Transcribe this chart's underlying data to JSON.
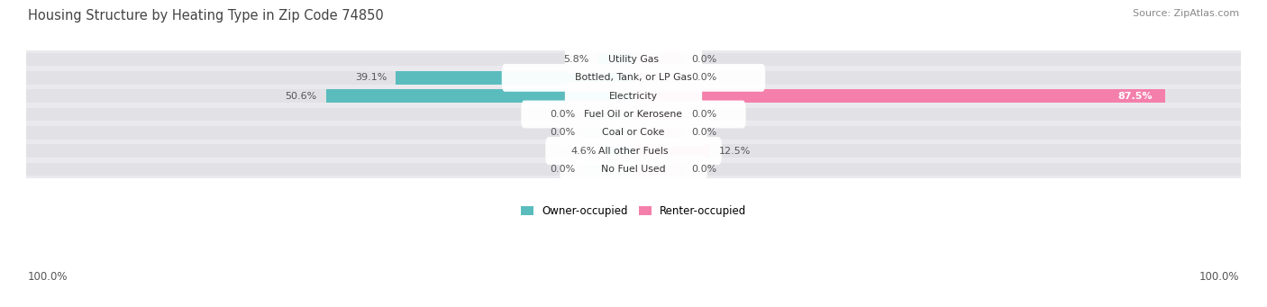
{
  "title": "Housing Structure by Heating Type in Zip Code 74850",
  "source": "Source: ZipAtlas.com",
  "categories": [
    "Utility Gas",
    "Bottled, Tank, or LP Gas",
    "Electricity",
    "Fuel Oil or Kerosene",
    "Coal or Coke",
    "All other Fuels",
    "No Fuel Used"
  ],
  "owner_values": [
    5.8,
    39.1,
    50.6,
    0.0,
    0.0,
    4.6,
    0.0
  ],
  "renter_values": [
    0.0,
    0.0,
    87.5,
    0.0,
    0.0,
    12.5,
    0.0
  ],
  "owner_color": "#5bbcbe",
  "owner_zero_color": "#a8dfe0",
  "renter_color": "#f47fab",
  "renter_zero_color": "#f9b8cf",
  "owner_label": "Owner-occupied",
  "renter_label": "Renter-occupied",
  "bar_bg_color": "#e2e2e6",
  "row_bg_color": "#eaeaee",
  "title_color": "#444444",
  "source_color": "#888888",
  "axis_max": 100.0,
  "zero_stub": 8.0,
  "figsize": [
    14.06,
    3.41
  ],
  "dpi": 100
}
